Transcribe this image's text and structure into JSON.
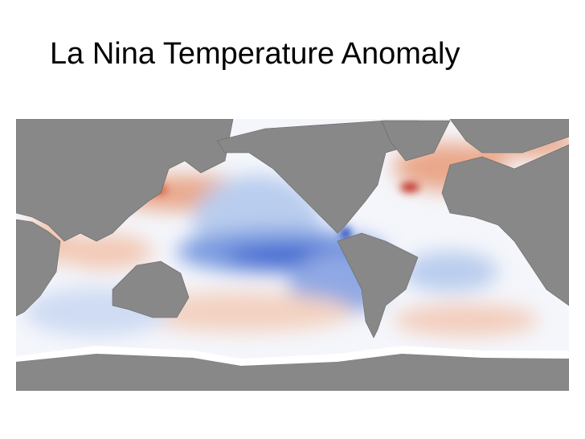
{
  "title": "La Nina Temperature Anomaly"
}
